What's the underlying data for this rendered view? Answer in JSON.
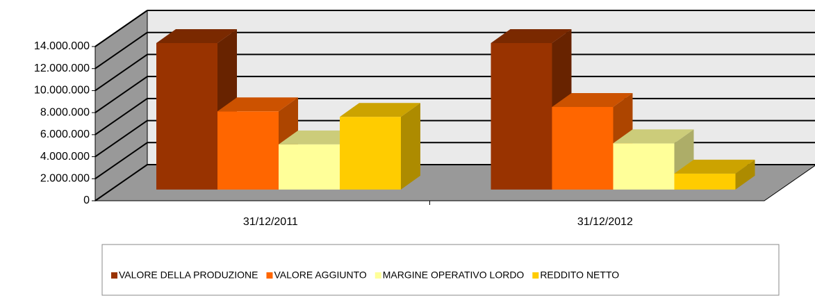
{
  "chart_data": {
    "type": "bar3d",
    "categories": [
      "31/12/2011",
      "31/12/2012"
    ],
    "series": [
      {
        "name": "VALORE DELLA PRODUZIONE",
        "color": "#993300",
        "values": [
          13300000,
          13300000
        ]
      },
      {
        "name": "VALORE AGGIUNTO",
        "color": "#FF6600",
        "values": [
          7100000,
          7500000
        ]
      },
      {
        "name": "MARGINE OPERATIVO LORDO",
        "color": "#FFFF99",
        "values": [
          4100000,
          4200000
        ]
      },
      {
        "name": "REDDITO NETTO",
        "color": "#FFCC00",
        "values": [
          6600000,
          1450000
        ]
      }
    ],
    "ylim": [
      0,
      14000000
    ],
    "yticks": [
      0,
      {
        "value": 2000000,
        "label": "2.000.000"
      },
      {
        "value": 4000000,
        "label": "4.000.000"
      },
      {
        "value": 6000000,
        "label": "6.000.000"
      },
      {
        "value": 8000000,
        "label": "8.000.000"
      },
      {
        "value": 10000000,
        "label": "10.000.000"
      },
      {
        "value": 12000000,
        "label": "12.000.000"
      },
      {
        "value": 14000000,
        "label": "14.000.000"
      }
    ],
    "grid": true,
    "legend": "bottom"
  }
}
